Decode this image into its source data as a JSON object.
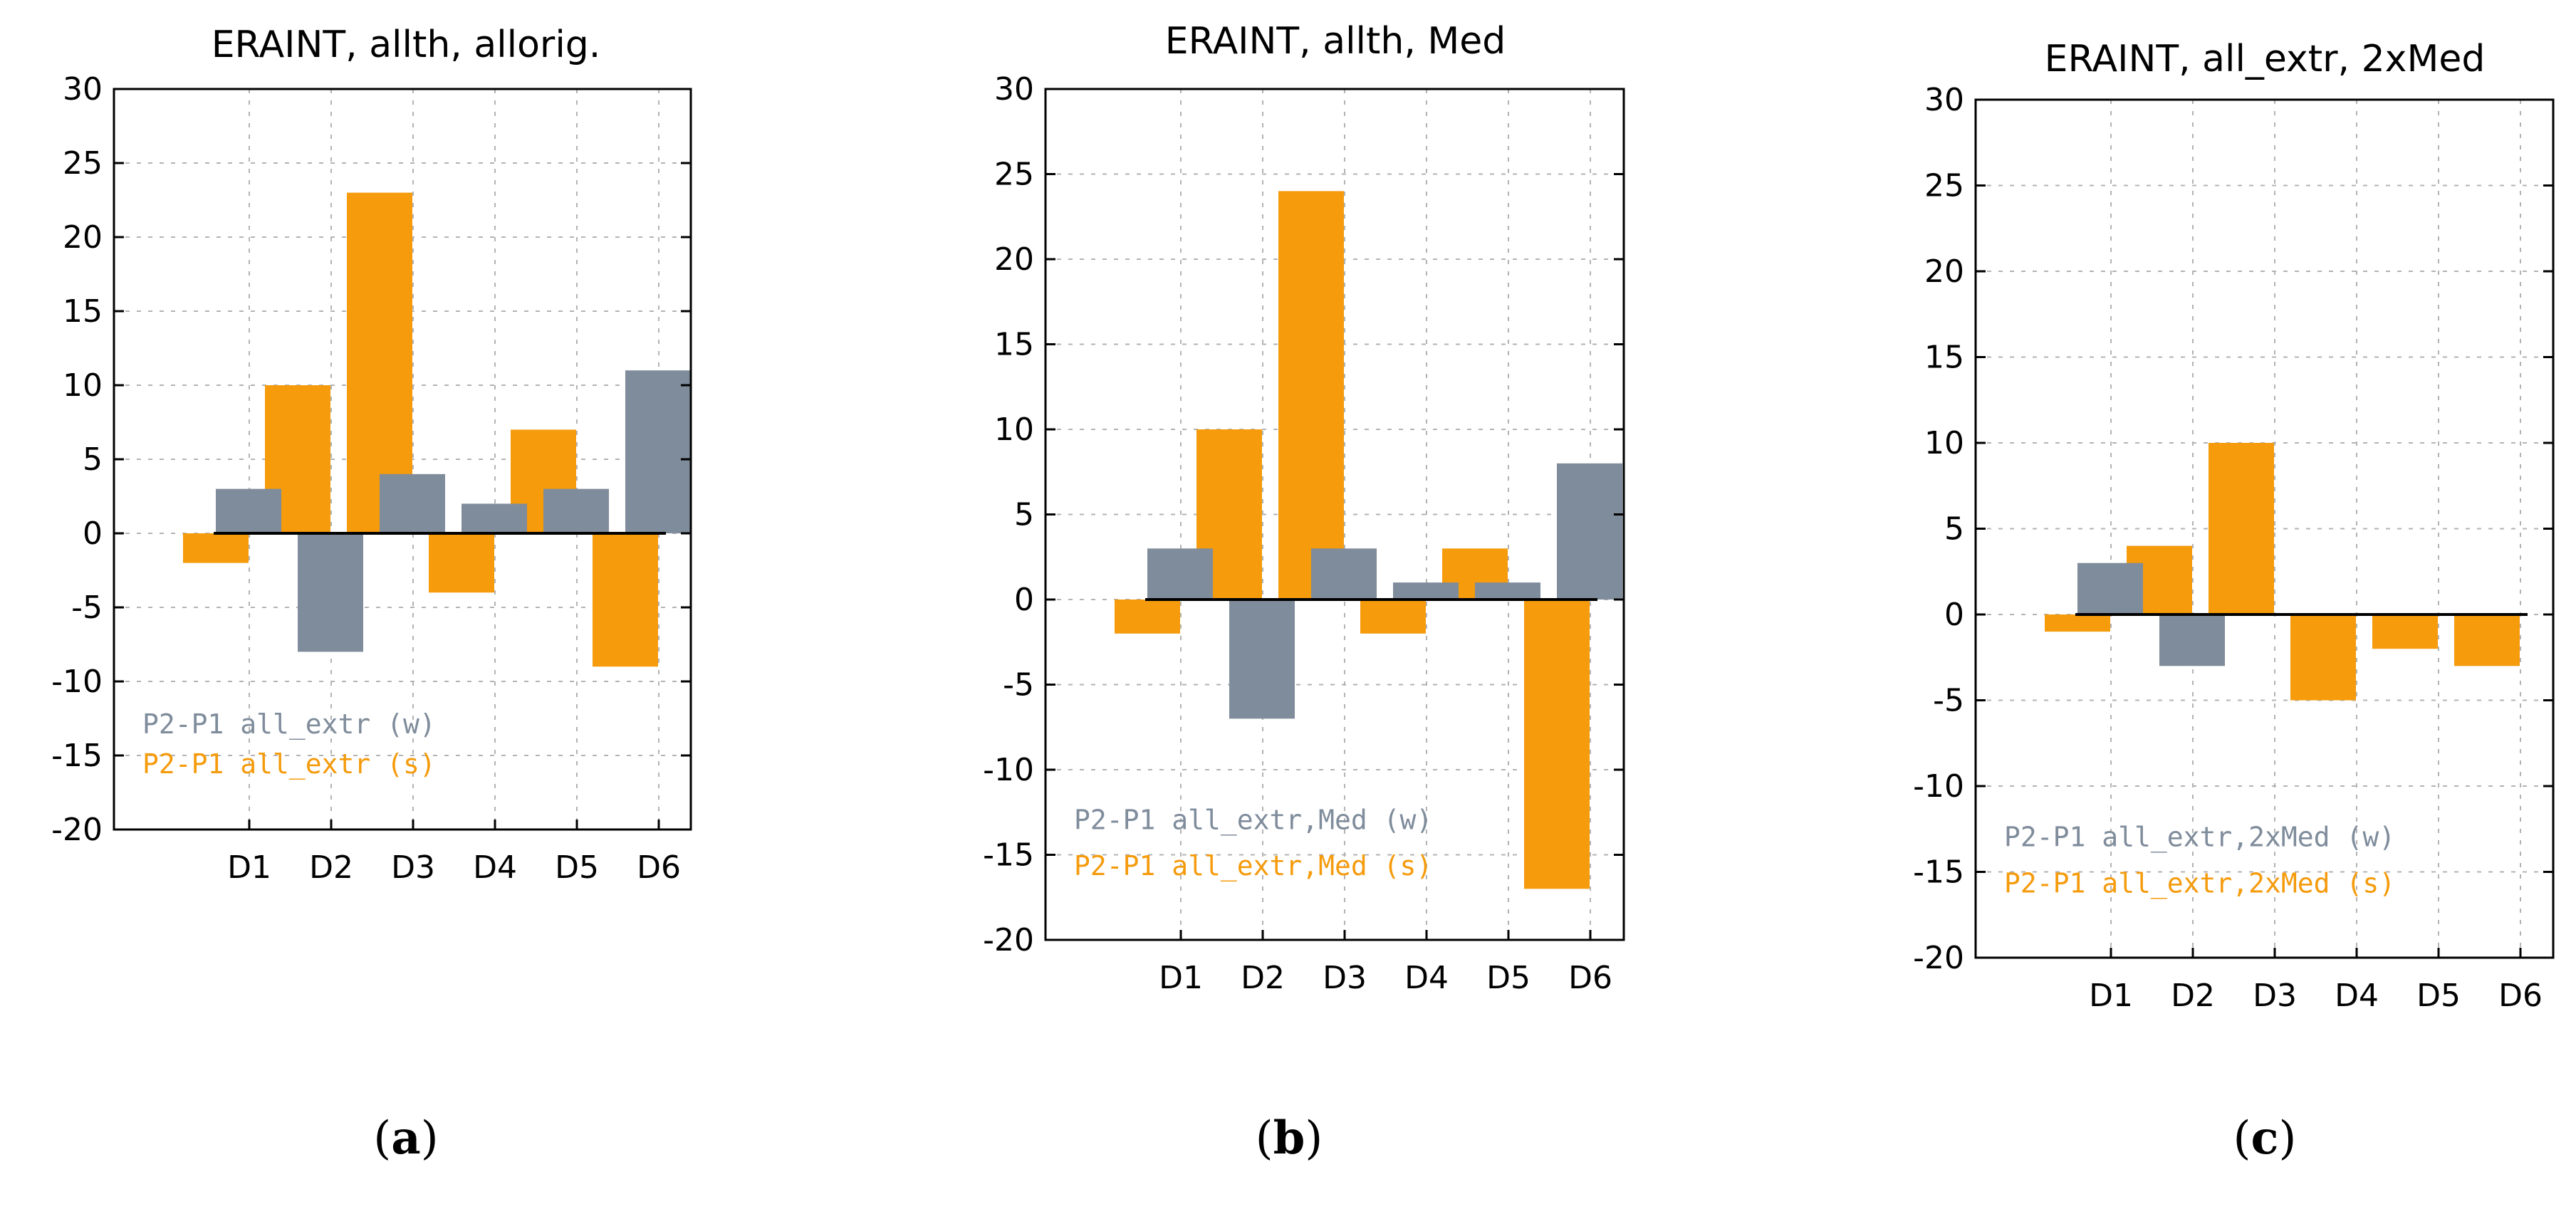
{
  "colors": {
    "winter": "#7f8c9b",
    "summer": "#f59b0c",
    "grid": "#b3b3b3",
    "axis": "#000000"
  },
  "chart_data": [
    {
      "type": "bar",
      "title": "ERAINT, allth, allorig.",
      "caption_letter": "a",
      "categories": [
        "D1",
        "D2",
        "D3",
        "D4",
        "D5",
        "D6"
      ],
      "ylim": [
        -20,
        30
      ],
      "yticks": [
        30,
        25,
        20,
        15,
        10,
        5,
        0,
        -5,
        -10,
        -15,
        -20
      ],
      "grid": true,
      "legend_position": "bottom-left",
      "series": [
        {
          "name": "P2-P1  all_extr (w)",
          "color_key": "winter",
          "values": [
            3,
            -8,
            4,
            2,
            3,
            11
          ]
        },
        {
          "name": "P2-P1  all_extr (s)",
          "color_key": "summer",
          "values": [
            -2,
            10,
            23,
            -4,
            7,
            -9
          ]
        }
      ]
    },
    {
      "type": "bar",
      "title": "ERAINT, allth, Med",
      "caption_letter": "b",
      "categories": [
        "D1",
        "D2",
        "D3",
        "D4",
        "D5",
        "D6"
      ],
      "ylim": [
        -20,
        30
      ],
      "yticks": [
        30,
        25,
        20,
        15,
        10,
        5,
        0,
        -5,
        -10,
        -15,
        -20
      ],
      "grid": true,
      "legend_position": "bottom-left",
      "series": [
        {
          "name": "P2-P1  all_extr,Med (w)",
          "color_key": "winter",
          "values": [
            3,
            -7,
            3,
            1,
            1,
            8
          ]
        },
        {
          "name": "P2-P1  all_extr,Med (s)",
          "color_key": "summer",
          "values": [
            -2,
            10,
            24,
            -2,
            3,
            -17
          ]
        }
      ]
    },
    {
      "type": "bar",
      "title": "ERAINT, all_extr, 2xMed",
      "caption_letter": "c",
      "categories": [
        "D1",
        "D2",
        "D3",
        "D4",
        "D5",
        "D6"
      ],
      "ylim": [
        -20,
        30
      ],
      "yticks": [
        30,
        25,
        20,
        15,
        10,
        5,
        0,
        -5,
        -10,
        -15,
        -20
      ],
      "grid": true,
      "legend_position": "bottom-left",
      "series": [
        {
          "name": "P2-P1  all_extr,2xMed (w)",
          "color_key": "winter",
          "values": [
            3,
            -3,
            0,
            0,
            0,
            0
          ]
        },
        {
          "name": "P2-P1  all_extr,2xMed (s)",
          "color_key": "summer",
          "values": [
            -1,
            4,
            10,
            -5,
            -2,
            -3
          ]
        }
      ]
    }
  ]
}
